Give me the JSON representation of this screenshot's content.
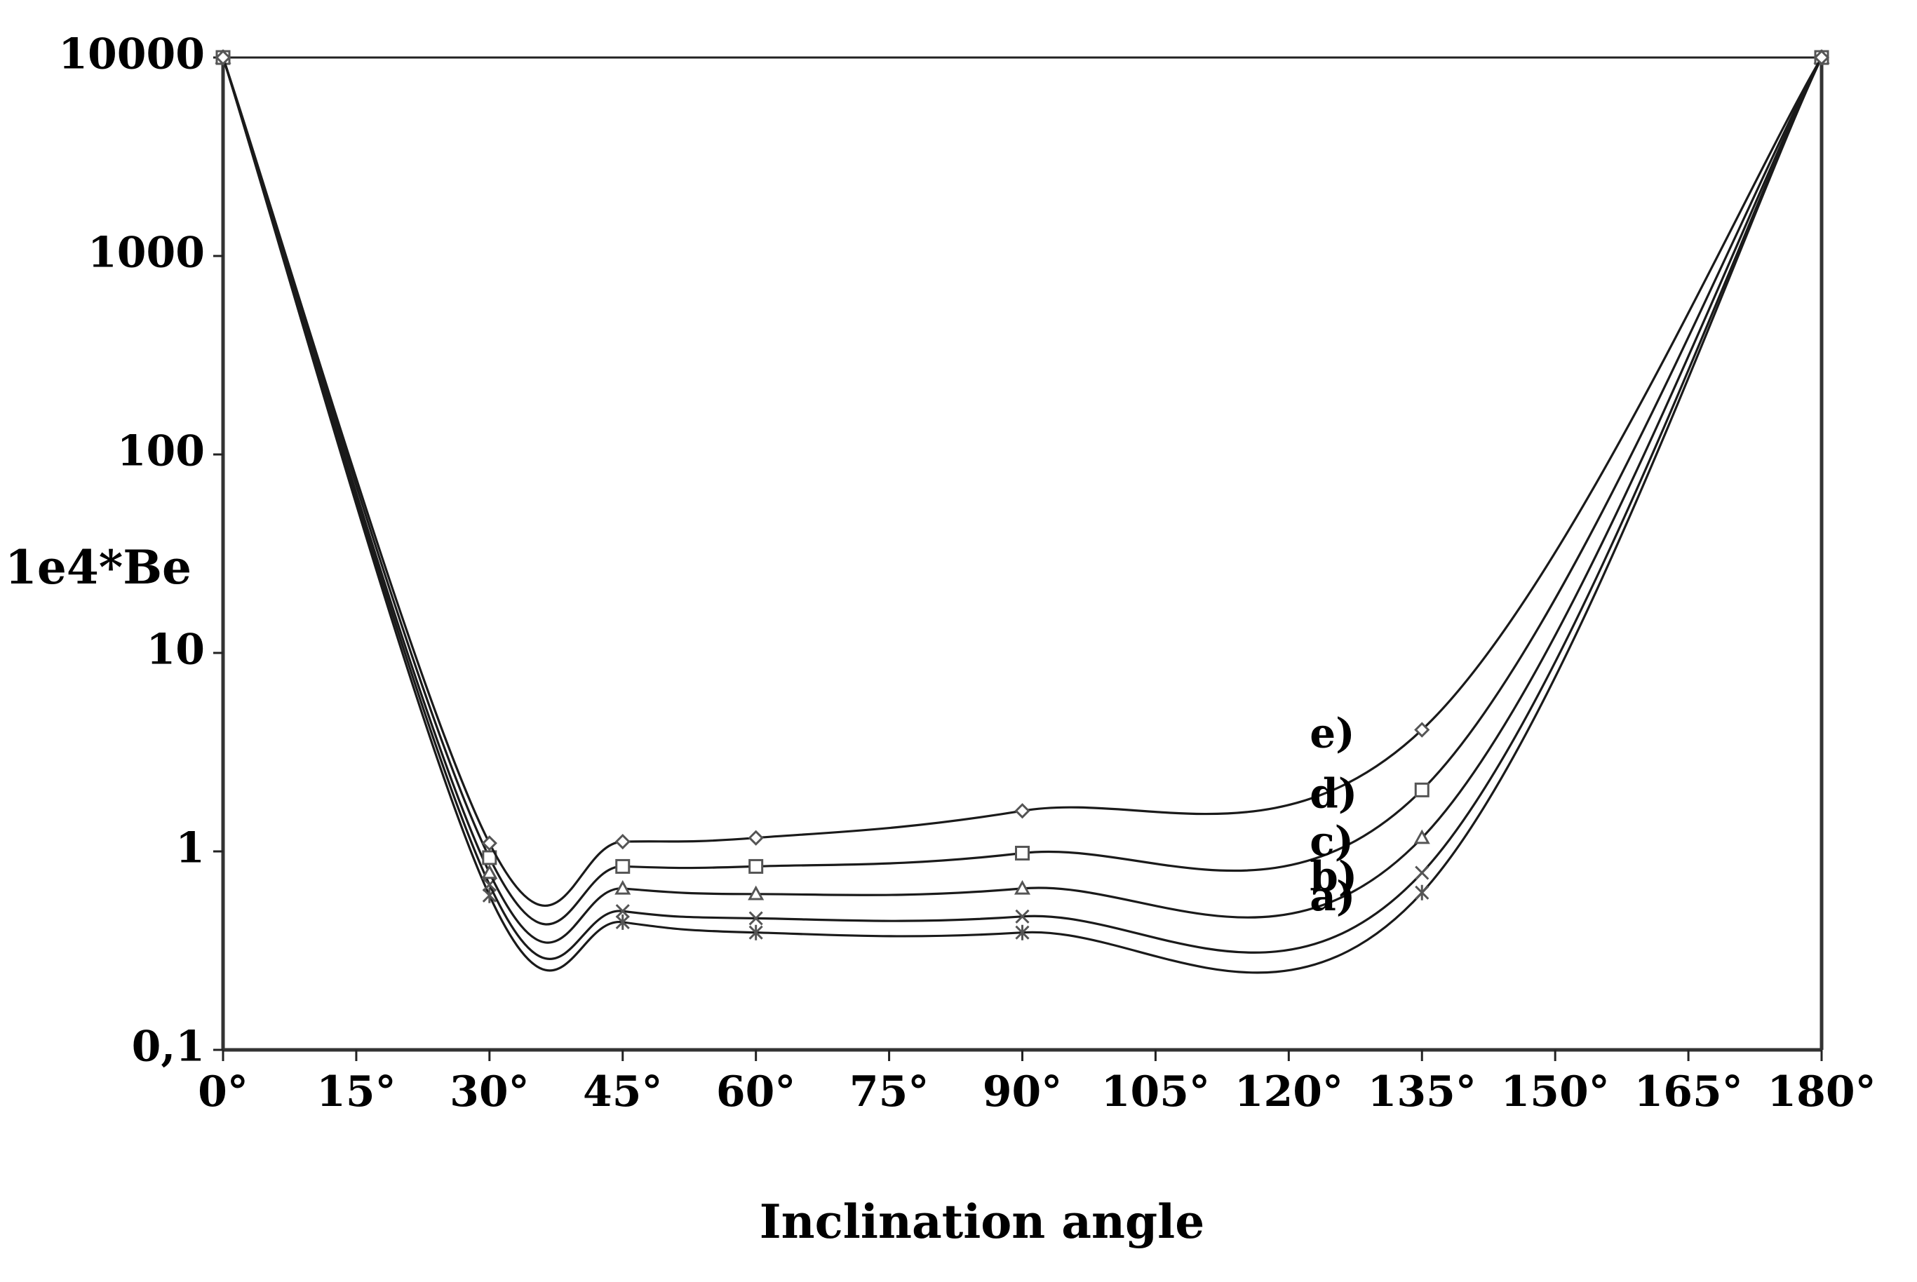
{
  "chart_data": {
    "type": "line",
    "title": "",
    "xlabel": "Inclination angle",
    "ylabel": "1e4*Be",
    "yscale": "log",
    "ylim": [
      0.1,
      10000
    ],
    "xlim": [
      0,
      180
    ],
    "y_ticks": [
      {
        "value": 10000,
        "label": "10000"
      },
      {
        "value": 1000,
        "label": "1000"
      },
      {
        "value": 100,
        "label": "100"
      },
      {
        "value": 10,
        "label": "10"
      },
      {
        "value": 1,
        "label": "1"
      },
      {
        "value": 0.1,
        "label": "0,1"
      }
    ],
    "x_ticks": [
      {
        "value": 0,
        "label": "0°"
      },
      {
        "value": 15,
        "label": "15°"
      },
      {
        "value": 30,
        "label": "30°"
      },
      {
        "value": 45,
        "label": "45°"
      },
      {
        "value": 60,
        "label": "60°"
      },
      {
        "value": 75,
        "label": "75°"
      },
      {
        "value": 90,
        "label": "90°"
      },
      {
        "value": 105,
        "label": "105°"
      },
      {
        "value": 120,
        "label": "120°"
      },
      {
        "value": 135,
        "label": "135°"
      },
      {
        "value": 150,
        "label": "150°"
      },
      {
        "value": 165,
        "label": "165°"
      },
      {
        "value": 180,
        "label": "180°"
      }
    ],
    "x": [
      0,
      30,
      45,
      60,
      90,
      135,
      180
    ],
    "series": [
      {
        "name": "a)",
        "label": "a)",
        "marker": "star",
        "values": [
          10000,
          0.6,
          0.44,
          0.39,
          0.39,
          0.62,
          10000
        ]
      },
      {
        "name": "b)",
        "label": "b)",
        "marker": "x",
        "values": [
          10000,
          0.68,
          0.5,
          0.46,
          0.47,
          0.78,
          10000
        ]
      },
      {
        "name": "c)",
        "label": "c)",
        "marker": "triangle",
        "values": [
          10000,
          0.78,
          0.65,
          0.61,
          0.65,
          1.17,
          10000
        ]
      },
      {
        "name": "d)",
        "label": "d)",
        "marker": "square",
        "values": [
          10000,
          0.93,
          0.84,
          0.84,
          0.98,
          2.04,
          10000
        ]
      },
      {
        "name": "e)",
        "label": "e)",
        "marker": "diamond",
        "values": [
          10000,
          1.1,
          1.12,
          1.17,
          1.6,
          4.1,
          10000
        ]
      }
    ],
    "grid": false,
    "legend": "inline labels near 135°"
  }
}
